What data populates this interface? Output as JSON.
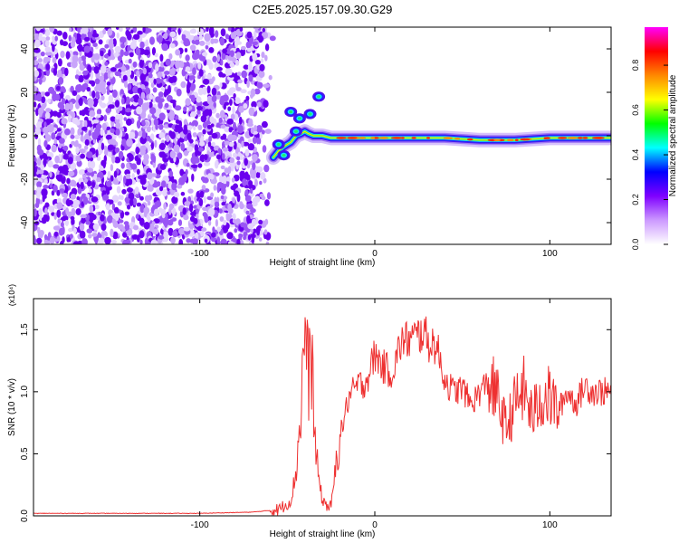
{
  "figure": {
    "title": "C2E5.2025.157.09.30.G29"
  },
  "chart_data": [
    {
      "type": "heatmap",
      "xlabel": "Height of straight line (km)",
      "ylabel": "Frequency (Hz)",
      "xlim": [
        -195,
        135
      ],
      "ylim": [
        -50,
        50
      ],
      "xticks": [
        -100,
        0,
        100
      ],
      "yticks": [
        -40,
        -20,
        0,
        20,
        40
      ],
      "noise_region": {
        "x": [
          -195,
          -58
        ],
        "y": [
          -50,
          50
        ]
      },
      "ridge": {
        "x": [
          -58,
          -55,
          -52,
          -50,
          -48,
          -45,
          -42,
          -40,
          -38,
          -35,
          -30,
          -25,
          -20,
          -10,
          0,
          10,
          20,
          40,
          60,
          80,
          100,
          120,
          135
        ],
        "y": [
          -10,
          -7,
          -5,
          -4,
          -3,
          0,
          1,
          2,
          1,
          0,
          0,
          -1,
          -1,
          -1,
          -1,
          -1,
          -1,
          -1,
          -2,
          -2,
          -1,
          -1,
          -1
        ]
      },
      "blobs": [
        {
          "x": -48,
          "y": 11
        },
        {
          "x": -43,
          "y": 8
        },
        {
          "x": -37,
          "y": 10
        },
        {
          "x": -45,
          "y": 2
        },
        {
          "x": -52,
          "y": -9
        },
        {
          "x": -55,
          "y": -4
        },
        {
          "x": -32,
          "y": 18
        }
      ],
      "colorbar": {
        "label": "Normalized spectral amplitude",
        "ticks": [
          "0.0",
          "0.2",
          "0.4",
          "0.6",
          "0.8"
        ],
        "tick_values": [
          0.0,
          0.2,
          0.4,
          0.6,
          0.8
        ],
        "range": [
          0,
          0.97
        ],
        "colors": [
          "#ffffff",
          "#cc99ff",
          "#7f00ff",
          "#0000ff",
          "#00ffff",
          "#00ff00",
          "#ffff00",
          "#ff8800",
          "#ff0000",
          "#ff00ff"
        ]
      }
    },
    {
      "type": "line",
      "xlabel": "Height of straight line (km)",
      "ylabel": "SNR (10 * v/v)",
      "scale_label": "(x10⁴)",
      "xlim": [
        -195,
        135
      ],
      "ylim": [
        0,
        1.75
      ],
      "xticks": [
        -100,
        0,
        100
      ],
      "yticks": [
        "0.0",
        "0.5",
        "1.0",
        "1.5"
      ],
      "ytick_values": [
        0.0,
        0.5,
        1.0,
        1.5
      ],
      "color": "#ee3030",
      "series": [
        {
          "x": [
            -195,
            -150,
            -100,
            -70,
            -55,
            -48,
            -45,
            -42,
            -40,
            -38,
            -36,
            -34,
            -32,
            -30,
            -28,
            -26,
            -24,
            -22,
            -20,
            -18,
            -15,
            -10,
            -5,
            0,
            5,
            10,
            15,
            20,
            25,
            28,
            30,
            35,
            40,
            45,
            50,
            55,
            60,
            65,
            70,
            75,
            80,
            85,
            90,
            95,
            100,
            105,
            110,
            115,
            120,
            125,
            130,
            135
          ],
          "y": [
            0.02,
            0.02,
            0.02,
            0.03,
            0.05,
            0.12,
            0.35,
            0.9,
            1.55,
            1.1,
            1.3,
            0.55,
            0.3,
            0.12,
            0.1,
            0.06,
            0.15,
            0.45,
            0.65,
            0.75,
            0.95,
            1.05,
            1.08,
            1.3,
            1.2,
            1.15,
            1.4,
            1.42,
            1.45,
            1.5,
            1.4,
            1.38,
            1.1,
            1.0,
            1.03,
            0.9,
            1.0,
            1.08,
            0.95,
            0.7,
            0.9,
            1.02,
            0.8,
            0.95,
            0.95,
            0.85,
            1.0,
            0.9,
            1.05,
            1.0,
            1.0,
            1.0
          ]
        }
      ]
    }
  ]
}
